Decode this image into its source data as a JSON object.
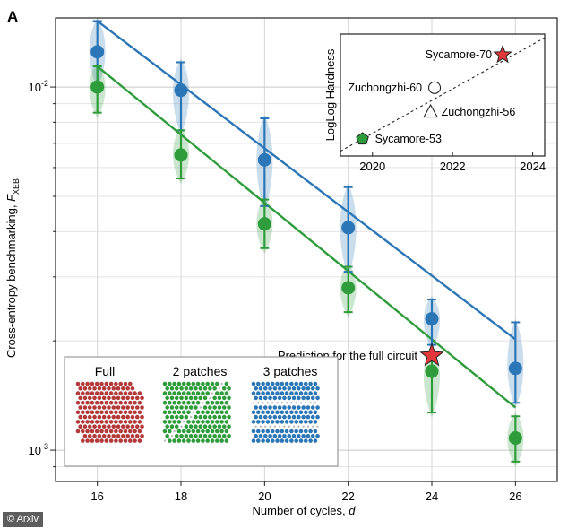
{
  "panel_label": "A",
  "credit": "© Arxiv",
  "chart_data": [
    {
      "type": "scatter",
      "subtype": "violin-with-errorbars-and-fit-lines",
      "title": "",
      "xlabel": "Number of cycles, d",
      "ylabel": "Cross-entropy benchmarking, F_XEB",
      "ylabel_text": "Cross-entropy benchmarking, ",
      "ylabel_symbol": "F",
      "ylabel_sub": "XEB",
      "xlabel_text": "Number of cycles, ",
      "xlabel_var": "d",
      "yscale": "log",
      "xlim": [
        15,
        27
      ],
      "ylim": [
        0.00082,
        0.0155
      ],
      "x_ticks": [
        16,
        18,
        20,
        22,
        24,
        26
      ],
      "x_tick_labels": [
        "16",
        "18",
        "20",
        "22",
        "24",
        "26"
      ],
      "y_major_ticks": [
        0.001,
        0.01
      ],
      "y_tick_labels": [
        {
          "base": "10",
          "exp": "-3",
          "value": 0.001
        },
        {
          "base": "10",
          "exp": "-2",
          "value": 0.01
        }
      ],
      "grid": true,
      "series": [
        {
          "name": "3 patches",
          "color": "#2b76b6",
          "x": [
            16,
            18,
            20,
            22,
            24,
            26
          ],
          "y": [
            0.0125,
            0.0098,
            0.0063,
            0.0041,
            0.0023,
            0.00168
          ],
          "err_low": [
            0.0103,
            0.0076,
            0.0047,
            0.0031,
            0.00195,
            0.00135
          ],
          "err_high": [
            0.0152,
            0.0117,
            0.0082,
            0.0053,
            0.0026,
            0.00225
          ],
          "fit": {
            "x": [
              16,
              26
            ],
            "y": [
              0.0152,
              0.00202
            ]
          }
        },
        {
          "name": "2 patches",
          "color": "#2e9c3a",
          "x": [
            16,
            18,
            20,
            22,
            24,
            26
          ],
          "y": [
            0.01,
            0.0065,
            0.0042,
            0.0028,
            0.00165,
            0.00108
          ],
          "err_low": [
            0.0085,
            0.0056,
            0.0036,
            0.0024,
            0.00127,
            0.00093
          ],
          "err_high": [
            0.0114,
            0.0076,
            0.0049,
            0.0032,
            0.00185,
            0.00124
          ],
          "fit": {
            "x": [
              16,
              26
            ],
            "y": [
              0.0114,
              0.00131
            ]
          }
        }
      ],
      "annotations": [
        {
          "text": "Prediction for the full circuit",
          "x": 24,
          "y": 0.00182,
          "marker": "star",
          "color": "#e2383c"
        }
      ],
      "legend_box": {
        "position": "bottom-left",
        "labels": [
          "Full",
          "2 patches",
          "3 patches"
        ],
        "colors": [
          "#b33a3a",
          "#2e9c3a",
          "#2b76b6"
        ]
      }
    },
    {
      "type": "scatter",
      "title": "",
      "xlabel": "",
      "ylabel": "LogLog Hardness",
      "xlim": [
        2019.2,
        2024.3
      ],
      "x_ticks": [
        2020,
        2022,
        2024
      ],
      "x_tick_labels": [
        "2020",
        "2022",
        "2024"
      ],
      "ylim": [
        0,
        1
      ],
      "position": "top-right inset",
      "points": [
        {
          "label": "Sycamore-53",
          "x": 2019.75,
          "y": 0.14,
          "marker": "pentagon",
          "color": "#2e9c3a"
        },
        {
          "label": "Zuchongzhi-60",
          "x": 2021.55,
          "y": 0.56,
          "marker": "circle",
          "color": "#ffffff"
        },
        {
          "label": "Zuchongzhi-56",
          "x": 2021.45,
          "y": 0.36,
          "marker": "triangle",
          "color": "#ffffff"
        },
        {
          "label": "Sycamore-70",
          "x": 2023.25,
          "y": 0.83,
          "marker": "star",
          "color": "#e2383c"
        }
      ],
      "trend": {
        "x": [
          2019.2,
          2024.3
        ],
        "y": [
          0.04,
          0.97
        ],
        "style": "dashed"
      }
    }
  ]
}
